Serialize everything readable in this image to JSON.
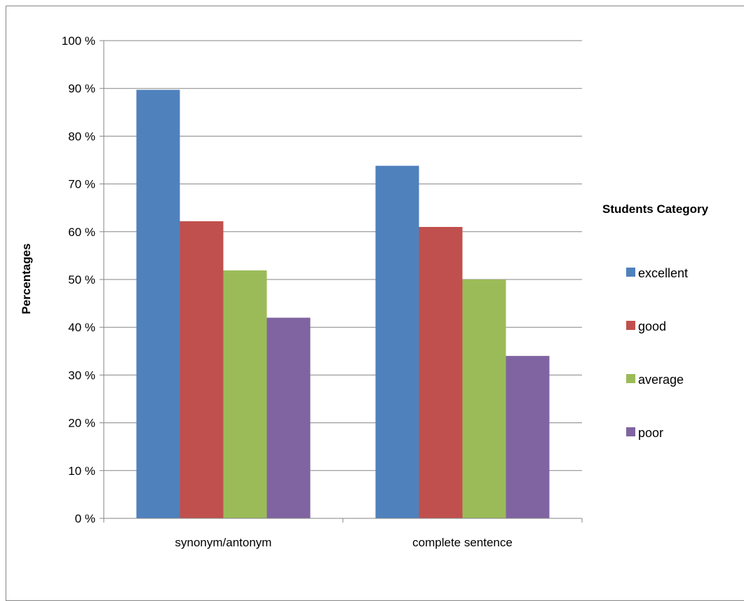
{
  "chart_data": {
    "type": "bar",
    "categories": [
      "synonym/antonym",
      "complete sentence"
    ],
    "series": [
      {
        "name": "excellent",
        "values": [
          89.7,
          73.8
        ],
        "color": "#4f81bd"
      },
      {
        "name": "good",
        "values": [
          62.2,
          61.0
        ],
        "color": "#c0504d"
      },
      {
        "name": "average",
        "values": [
          51.9,
          50.0
        ],
        "color": "#9bbb59"
      },
      {
        "name": "poor",
        "values": [
          42.0,
          34.0
        ],
        "color": "#8064a2"
      }
    ],
    "ylabel": "Percentages",
    "ylim": [
      0,
      100
    ],
    "yticks": [
      0,
      10,
      20,
      30,
      40,
      50,
      60,
      70,
      80,
      90,
      100
    ],
    "ytick_labels": [
      "0 %",
      "10 %",
      "20 %",
      "30 %",
      "40 %",
      "50 %",
      "60 %",
      "70 %",
      "80 %",
      "90 %",
      "100 %"
    ],
    "grid": true,
    "legend": {
      "title": "Students Category",
      "position": "right"
    }
  }
}
